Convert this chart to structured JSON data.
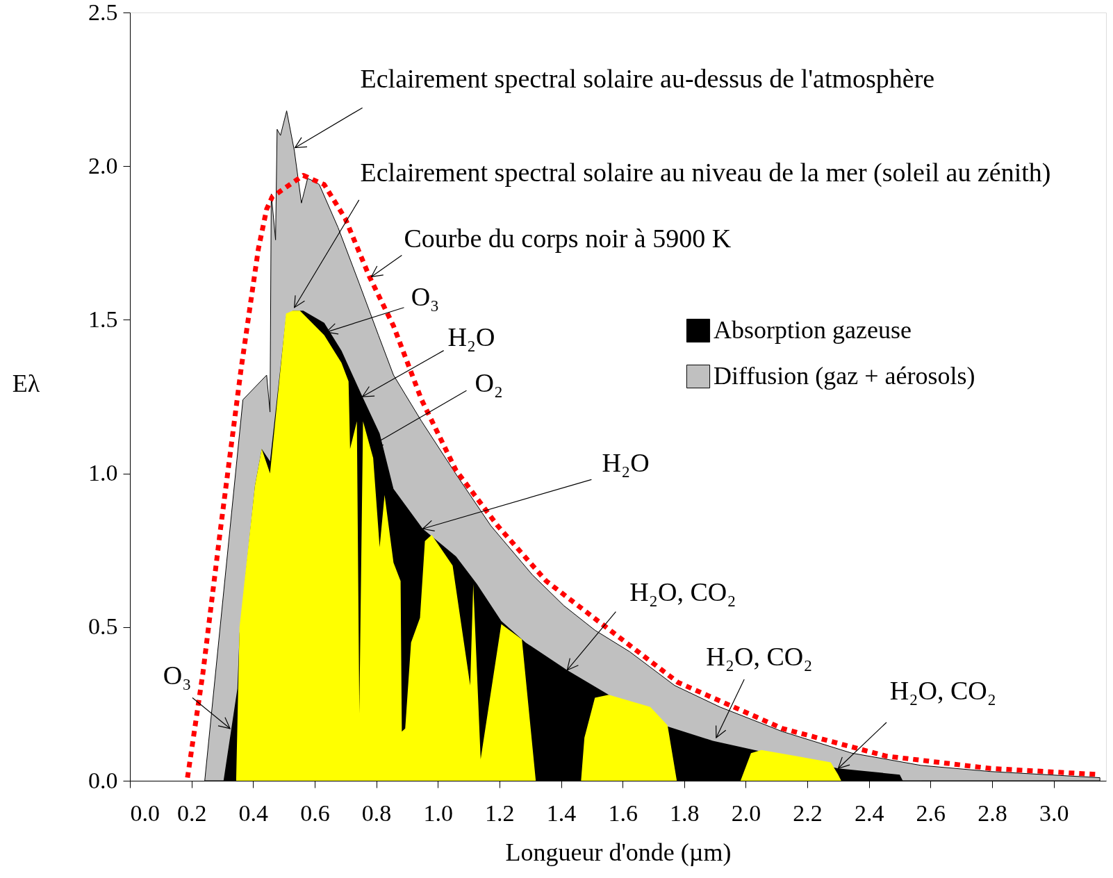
{
  "chart_data": {
    "type": "area",
    "xlabel": "Longueur d'onde (µm)",
    "ylabel": "Eλ",
    "xlim": [
      0,
      3.17
    ],
    "ylim": [
      0,
      2.5
    ],
    "xticks": [
      {
        "value": 0,
        "label": "0.0"
      },
      0.2,
      0.4,
      0.6,
      0.8,
      {
        "value": 1,
        "label": "1.0"
      },
      1.2,
      1.4,
      1.6,
      1.8,
      {
        "value": 2,
        "label": "2.0"
      },
      2.2,
      2.4,
      2.6,
      2.8,
      {
        "value": 3,
        "label": "3.0"
      }
    ],
    "yticks": [
      {
        "value": 0,
        "label": "0.0"
      },
      0.5,
      {
        "value": 1,
        "label": "1.0"
      },
      1.5,
      {
        "value": 2,
        "label": "2.0"
      },
      2.5
    ],
    "grid": false,
    "legend": "right",
    "series": [
      {
        "name": "Absorption gazeuse",
        "color": "#000000",
        "x": [
          0.304,
          0.349,
          0.356,
          0.406,
          0.428,
          0.455,
          0.507,
          0.529,
          0.563,
          0.631,
          0.687,
          0.755,
          0.811,
          0.856,
          0.951,
          1.059,
          1.127,
          1.206,
          1.285,
          1.42,
          1.555,
          1.735,
          1.893,
          2.028,
          2.3,
          2.5,
          2.51
        ],
        "values": [
          0,
          0.3,
          0.48,
          0.96,
          1.08,
          1.04,
          1.51,
          1.53,
          1.53,
          1.49,
          1.4,
          1.25,
          1.13,
          0.95,
          0.82,
          0.73,
          0.64,
          0.52,
          0.45,
          0.36,
          0.28,
          0.18,
          0.13,
          0.1,
          0.04,
          0.02,
          0
        ]
      },
      {
        "name": "Diffusion (gaz + aérosols)",
        "color": "#c0c0c0",
        "x": [
          0.243,
          0.367,
          0.444,
          0.455,
          0.459,
          0.473,
          0.478,
          0.489,
          0.509,
          0.534,
          0.557,
          0.577,
          0.6,
          0.615,
          0.676,
          0.744,
          0.807,
          0.856,
          0.947,
          1.064,
          1.172,
          1.307,
          1.409,
          1.51,
          1.623,
          1.769,
          1.916,
          2.119,
          2.344,
          2.569,
          2.795,
          3.15
        ],
        "values": [
          0,
          1.24,
          1.32,
          1.2,
          1.91,
          1.76,
          2.12,
          2.1,
          2.18,
          2.05,
          1.88,
          1.96,
          1.95,
          1.94,
          1.8,
          1.62,
          1.45,
          1.32,
          1.17,
          0.99,
          0.83,
          0.67,
          0.57,
          0.49,
          0.42,
          0.31,
          0.24,
          0.16,
          0.09,
          0.05,
          0.03,
          0.01
        ]
      },
      {
        "color": "#ffff00",
        "x": [
          0.345,
          0.356,
          0.406,
          0.428,
          0.455,
          0.507,
          0.529,
          0.552,
          0.631,
          0.687,
          0.71,
          0.715,
          0.737,
          0.745,
          0.757,
          0.79,
          0.811,
          0.827,
          0.856,
          0.879,
          0.883,
          0.894,
          0.913,
          0.942,
          0.958,
          0.98,
          1.048,
          1.115,
          1.105,
          1.139,
          1.206,
          1.273,
          1.318,
          1.465,
          1.476,
          1.51,
          1.555,
          1.69,
          1.746,
          1.776,
          1.983,
          2.017,
          2.051,
          2.164,
          2.276,
          2.3,
          2.31
        ],
        "values": [
          0,
          0.5,
          0.96,
          1.08,
          1.0,
          1.52,
          1.53,
          1.53,
          1.45,
          1.36,
          1.3,
          1.08,
          1.17,
          0.22,
          1.17,
          1.05,
          0.76,
          0.93,
          0.71,
          0.65,
          0.16,
          0.17,
          0.45,
          0.53,
          0.78,
          0.8,
          0.7,
          0.64,
          0.31,
          0.07,
          0.51,
          0.46,
          0,
          0,
          0.14,
          0.27,
          0.28,
          0.24,
          0.18,
          0,
          0,
          0.09,
          0.1,
          0.08,
          0.06,
          0.02,
          0
        ]
      },
      {
        "type": "line",
        "color": "#ff0000",
        "line_style": "dotted",
        "x": [
          0.187,
          0.237,
          0.293,
          0.361,
          0.417,
          0.444,
          0.462,
          0.563,
          0.631,
          0.699,
          0.778,
          0.856,
          0.947,
          1.059,
          1.194,
          1.352,
          1.533,
          1.78,
          2.119,
          2.457,
          2.795,
          3.15
        ],
        "values": [
          0.01,
          0.35,
          0.81,
          1.34,
          1.73,
          1.86,
          1.9,
          1.97,
          1.94,
          1.83,
          1.64,
          1.48,
          1.24,
          1.01,
          0.83,
          0.65,
          0.51,
          0.32,
          0.17,
          0.08,
          0.04,
          0.02
        ]
      }
    ],
    "annotations": [
      {
        "text": "Eclairement spectral solaire au-dessus de l'atmosphère",
        "x": 0.536,
        "y": 2.06
      },
      {
        "text": "Eclairement spectral solaire au niveau de la mer (soleil au zénith)",
        "x": 0.534,
        "y": 1.54
      },
      {
        "text": "Courbe du corps noir à 5900 K",
        "x": 0.784,
        "y": 1.64
      },
      {
        "text": "O₃",
        "x": 0.638,
        "y": 1.46
      },
      {
        "text": "H₂O",
        "x": 0.755,
        "y": 1.25
      },
      {
        "text": "O₂",
        "x": 0.784,
        "y": 1.09
      },
      {
        "text": "H₂O",
        "x": 0.951,
        "y": 0.82
      },
      {
        "text": "H₂O, CO₂",
        "x": 1.42,
        "y": 0.36
      },
      {
        "text": "H₂O, CO₂",
        "x": 1.904,
        "y": 0.14
      },
      {
        "text": "H₂O, CO₂",
        "x": 2.3,
        "y": 0.04
      },
      {
        "text": "O₃",
        "x": 0.325,
        "y": 0.17
      }
    ]
  }
}
